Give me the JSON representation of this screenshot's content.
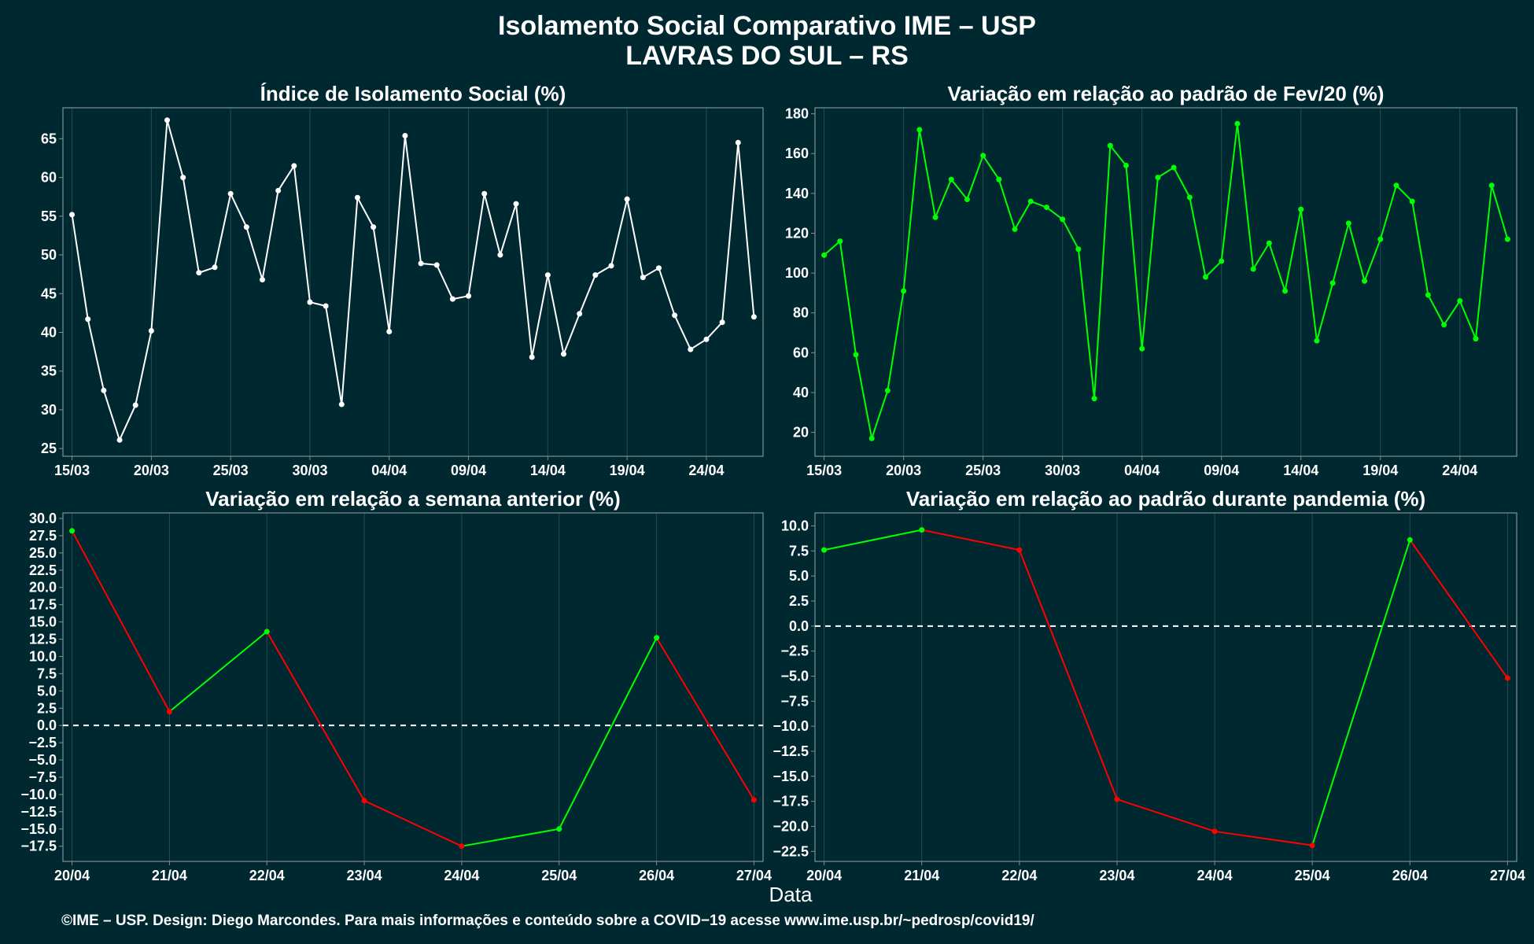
{
  "title_line1": "Isolamento Social Comparativo IME – USP",
  "title_line2": "LAVRAS DO SUL – RS",
  "xlabel": "Data",
  "caption": "©IME – USP. Design: Diego Marcondes. Para mais informações e conteúdo sobre a COVID−19 acesse www.ime.usp.br/~pedrosp/covid19/",
  "colors": {
    "background": "#002831",
    "grid": "#2b4a51",
    "frame": "#7f8f93",
    "white_series": "#ffffff",
    "positive": "#00ff00",
    "negative": "#ff0000",
    "zero_line": "#ffffff"
  },
  "chart_data": [
    {
      "type": "line",
      "title": "Índice de Isolamento Social (%)",
      "color_mode": "single",
      "series_color": "#ffffff",
      "x_start_day": "15/03",
      "x": [
        "15/03",
        "16/03",
        "17/03",
        "18/03",
        "19/03",
        "20/03",
        "21/03",
        "22/03",
        "23/03",
        "24/03",
        "25/03",
        "26/03",
        "27/03",
        "28/03",
        "29/03",
        "30/03",
        "31/03",
        "01/04",
        "02/04",
        "03/04",
        "04/04",
        "05/04",
        "06/04",
        "07/04",
        "08/04",
        "09/04",
        "10/04",
        "11/04",
        "12/04",
        "13/04",
        "14/04",
        "15/04",
        "16/04",
        "17/04",
        "18/04",
        "19/04",
        "20/04",
        "21/04",
        "22/04",
        "23/04",
        "24/04",
        "25/04",
        "26/04",
        "27/04"
      ],
      "values": [
        55.2,
        41.7,
        32.5,
        26.1,
        30.6,
        40.2,
        67.4,
        60.0,
        47.7,
        48.4,
        57.9,
        53.6,
        46.8,
        58.3,
        61.5,
        43.9,
        43.4,
        30.7,
        57.4,
        53.6,
        40.1,
        65.4,
        48.9,
        48.7,
        44.3,
        44.7,
        57.9,
        50.0,
        56.6,
        36.8,
        47.4,
        37.2,
        42.4,
        47.4,
        48.6,
        57.2,
        47.1,
        48.3,
        42.2,
        37.8,
        39.1,
        41.3,
        64.5,
        42.0
      ],
      "xticks": [
        "15/03",
        "20/03",
        "25/03",
        "30/03",
        "04/04",
        "09/04",
        "14/04",
        "19/04",
        "24/04"
      ],
      "xtick_index": [
        0,
        5,
        10,
        15,
        20,
        25,
        30,
        35,
        40
      ],
      "ylim": [
        24,
        69
      ],
      "yticks": [
        25,
        30,
        35,
        40,
        45,
        50,
        55,
        60,
        65
      ],
      "ytick_labels": [
        "25",
        "30",
        "35",
        "40",
        "45",
        "50",
        "55",
        "60",
        "65"
      ],
      "zero_line": false
    },
    {
      "type": "line",
      "title": "Variação em relação ao padrão de Fev/20 (%)",
      "color_mode": "single",
      "series_color": "#00ff00",
      "x": [
        "15/03",
        "16/03",
        "17/03",
        "18/03",
        "19/03",
        "20/03",
        "21/03",
        "22/03",
        "23/03",
        "24/03",
        "25/03",
        "26/03",
        "27/03",
        "28/03",
        "29/03",
        "30/03",
        "31/03",
        "01/04",
        "02/04",
        "03/04",
        "04/04",
        "05/04",
        "06/04",
        "07/04",
        "08/04",
        "09/04",
        "10/04",
        "11/04",
        "12/04",
        "13/04",
        "14/04",
        "15/04",
        "16/04",
        "17/04",
        "18/04",
        "19/04",
        "20/04",
        "21/04",
        "22/04",
        "23/04",
        "24/04",
        "25/04",
        "26/04",
        "27/04"
      ],
      "values": [
        109,
        116,
        59,
        17,
        41,
        91,
        172,
        128,
        147,
        137,
        159,
        147,
        122,
        136,
        133,
        127,
        112,
        37,
        164,
        154,
        62,
        148,
        153,
        138,
        98,
        106,
        175,
        102,
        115,
        91,
        132,
        66,
        95,
        125,
        96,
        117,
        144,
        136,
        89,
        74,
        86,
        67,
        144,
        117
      ],
      "xticks": [
        "15/03",
        "20/03",
        "25/03",
        "30/03",
        "04/04",
        "09/04",
        "14/04",
        "19/04",
        "24/04"
      ],
      "xtick_index": [
        0,
        5,
        10,
        15,
        20,
        25,
        30,
        35,
        40
      ],
      "ylim": [
        8,
        183
      ],
      "yticks": [
        20,
        40,
        60,
        80,
        100,
        120,
        140,
        160,
        180
      ],
      "ytick_labels": [
        "20",
        "40",
        "60",
        "80",
        "100",
        "120",
        "140",
        "160",
        "180"
      ],
      "zero_line": false
    },
    {
      "type": "line",
      "title": "Variação em relação a semana anterior (%)",
      "color_mode": "sign",
      "x": [
        "20/04",
        "21/04",
        "22/04",
        "23/04",
        "24/04",
        "25/04",
        "26/04",
        "27/04"
      ],
      "values": [
        28.2,
        2.0,
        13.6,
        -10.9,
        -17.5,
        -15.0,
        12.7,
        -10.8
      ],
      "xticks": [
        "20/04",
        "21/04",
        "22/04",
        "23/04",
        "24/04",
        "25/04",
        "26/04",
        "27/04"
      ],
      "xtick_index": [
        0,
        1,
        2,
        3,
        4,
        5,
        6,
        7
      ],
      "ylim": [
        -19.7,
        30.8
      ],
      "yticks": [
        -17.5,
        -15,
        -12.5,
        -10,
        -7.5,
        -5,
        -2.5,
        0,
        2.5,
        5,
        7.5,
        10,
        12.5,
        15,
        17.5,
        20,
        22.5,
        25,
        27.5,
        30
      ],
      "ytick_labels": [
        "−17.5",
        "−15.0",
        "−12.5",
        "−10.0",
        "−7.5",
        "−5.0",
        "−2.5",
        "0.0",
        "2.5",
        "5.0",
        "7.5",
        "10.0",
        "12.5",
        "15.0",
        "17.5",
        "20.0",
        "22.5",
        "25.0",
        "27.5",
        "30.0"
      ],
      "zero_line": true
    },
    {
      "type": "line",
      "title": "Variação em relação ao padrão durante pandemia (%)",
      "color_mode": "sign",
      "x": [
        "20/04",
        "21/04",
        "22/04",
        "23/04",
        "24/04",
        "25/04",
        "26/04",
        "27/04"
      ],
      "values": [
        7.6,
        9.6,
        7.6,
        -17.3,
        -20.5,
        -21.9,
        8.6,
        -5.2
      ],
      "xticks": [
        "20/04",
        "21/04",
        "22/04",
        "23/04",
        "24/04",
        "25/04",
        "26/04",
        "27/04"
      ],
      "xtick_index": [
        0,
        1,
        2,
        3,
        4,
        5,
        6,
        7
      ],
      "ylim": [
        -23.5,
        11.3
      ],
      "yticks": [
        -22.5,
        -20,
        -17.5,
        -15,
        -12.5,
        -10,
        -7.5,
        -5,
        -2.5,
        0,
        2.5,
        5,
        7.5,
        10
      ],
      "ytick_labels": [
        "−22.5",
        "−20.0",
        "−17.5",
        "−15.0",
        "−12.5",
        "−10.0",
        "−7.5",
        "−5.0",
        "−2.5",
        "0.0",
        "2.5",
        "5.0",
        "7.5",
        "10.0"
      ],
      "zero_line": true
    }
  ]
}
